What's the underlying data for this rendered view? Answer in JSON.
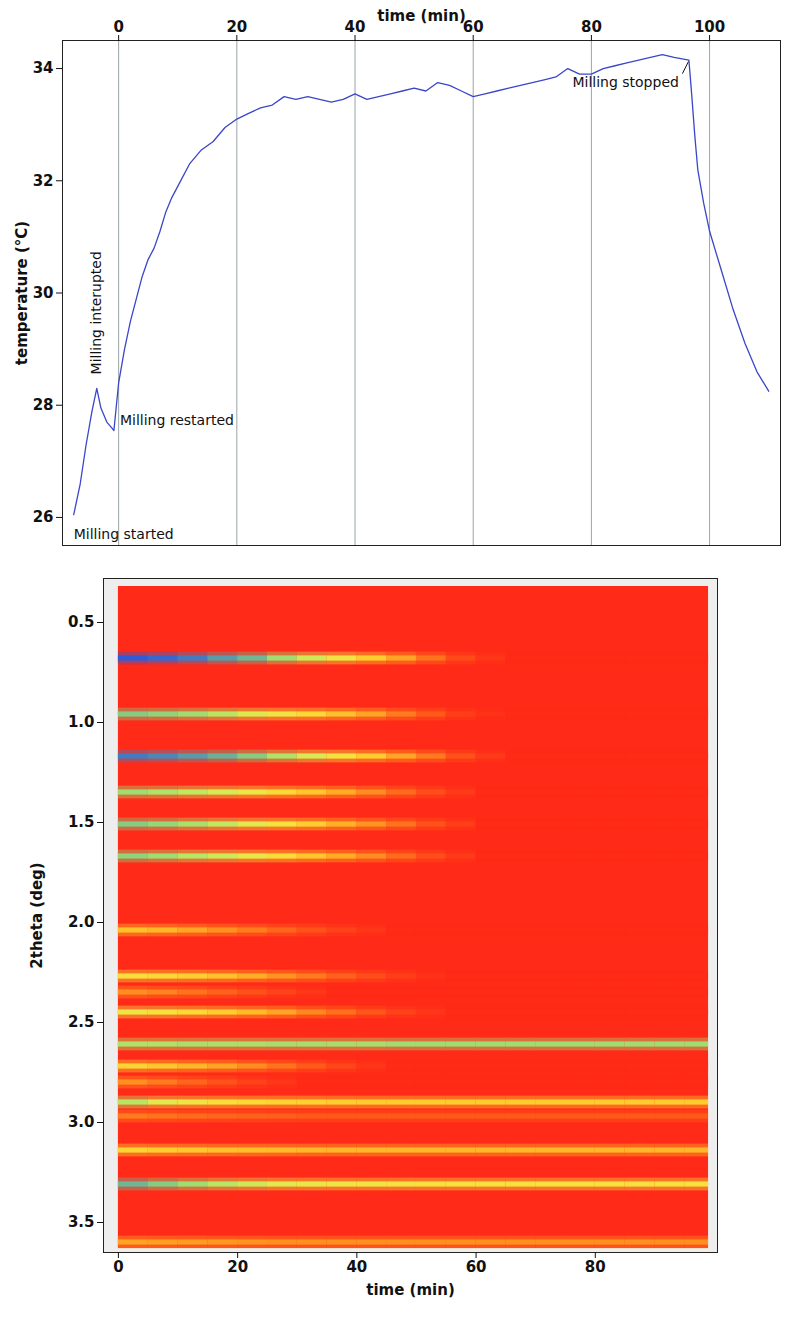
{
  "chart_data": [
    {
      "type": "line",
      "x_label": "time (min)",
      "y_label": "temperature (°C)",
      "xlim": [
        -9.5,
        112
      ],
      "ylim": [
        25.5,
        34.5
      ],
      "xticks": [
        0,
        20,
        40,
        60,
        80,
        100
      ],
      "yticks": [
        26,
        28,
        30,
        32,
        34
      ],
      "grid": true,
      "color": "#3b46c9",
      "x": [
        -7.6,
        -6.5,
        -5.5,
        -4.5,
        -3.7,
        -3,
        -2,
        -1.2,
        -0.8,
        0,
        1,
        2,
        3,
        4,
        5,
        6,
        7,
        8,
        9,
        10,
        12,
        14,
        16,
        18,
        20,
        22,
        24,
        26,
        28,
        30,
        32,
        34,
        36,
        38,
        40,
        42,
        44,
        46,
        48,
        50,
        52,
        54,
        56,
        58,
        60,
        62,
        64,
        66,
        68,
        70,
        72,
        74,
        76,
        78,
        80,
        82,
        84,
        86,
        88,
        90,
        92,
        94,
        96.5,
        97,
        97.5,
        98,
        99,
        100,
        102,
        104,
        106,
        108,
        110
      ],
      "values": [
        26.05,
        26.6,
        27.3,
        27.9,
        28.3,
        27.95,
        27.7,
        27.6,
        27.55,
        28.4,
        29.0,
        29.5,
        29.9,
        30.3,
        30.6,
        30.8,
        31.1,
        31.45,
        31.7,
        31.9,
        32.3,
        32.55,
        32.7,
        32.95,
        33.1,
        33.2,
        33.3,
        33.35,
        33.5,
        33.45,
        33.5,
        33.45,
        33.4,
        33.45,
        33.55,
        33.45,
        33.5,
        33.55,
        33.6,
        33.65,
        33.6,
        33.75,
        33.7,
        33.6,
        33.5,
        33.55,
        33.6,
        33.65,
        33.7,
        33.75,
        33.8,
        33.85,
        34.0,
        33.9,
        33.9,
        34.0,
        34.05,
        34.1,
        34.15,
        34.2,
        34.25,
        34.2,
        34.15,
        33.5,
        32.8,
        32.2,
        31.6,
        31.1,
        30.4,
        29.7,
        29.1,
        28.6,
        28.25
      ],
      "annotations": [
        {
          "text": "Milling started",
          "x": -7.6,
          "y": 26.05
        },
        {
          "text": "Milling interupted",
          "x": -3.7,
          "y": 28.3
        },
        {
          "text": "Milling restarted",
          "x": -0.8,
          "y": 27.55
        },
        {
          "text": "Milling stopped",
          "x": 96.5,
          "y": 34.15
        }
      ]
    },
    {
      "type": "heatmap",
      "x_label": "time (min)",
      "y_label": "2theta (deg)",
      "xlim": [
        -2.5,
        100.5
      ],
      "ylim": [
        0.28,
        3.65
      ],
      "xticks": [
        0,
        20,
        40,
        60,
        80
      ],
      "yticks": [
        0.5,
        {
          "value": 1,
          "label": "1.0"
        },
        1.5,
        {
          "value": 2,
          "label": "2.0"
        },
        2.5,
        {
          "value": 3,
          "label": "3.0"
        },
        3.5
      ],
      "value_range": [
        0,
        1
      ],
      "two_theta_range": [
        0.32,
        3.63
      ],
      "time_bins": [
        0,
        5,
        10,
        15,
        20,
        25,
        30,
        35,
        40,
        45,
        50,
        55,
        60,
        65,
        70,
        75,
        80,
        85,
        90,
        95,
        99
      ],
      "peaks": [
        {
          "two_theta": 0.68,
          "values": [
            1,
            0.98,
            0.95,
            0.9,
            0.85,
            0.75,
            0.65,
            0.55,
            0.42,
            0.3,
            0.18,
            0.08,
            0.03,
            0,
            0,
            0,
            0,
            0,
            0,
            0
          ]
        },
        {
          "two_theta": 0.96,
          "values": [
            0.8,
            0.78,
            0.75,
            0.7,
            0.62,
            0.55,
            0.47,
            0.38,
            0.3,
            0.2,
            0.12,
            0.05,
            0.02,
            0,
            0,
            0,
            0,
            0,
            0,
            0
          ]
        },
        {
          "two_theta": 1.17,
          "values": [
            0.95,
            0.93,
            0.9,
            0.86,
            0.8,
            0.72,
            0.63,
            0.53,
            0.42,
            0.3,
            0.2,
            0.1,
            0.04,
            0,
            0,
            0,
            0,
            0,
            0,
            0
          ]
        },
        {
          "two_theta": 1.35,
          "values": [
            0.75,
            0.72,
            0.68,
            0.63,
            0.56,
            0.48,
            0.4,
            0.32,
            0.24,
            0.16,
            0.09,
            0.04,
            0,
            0,
            0,
            0,
            0,
            0,
            0,
            0
          ]
        },
        {
          "two_theta": 1.51,
          "values": [
            0.8,
            0.77,
            0.73,
            0.68,
            0.6,
            0.52,
            0.43,
            0.34,
            0.26,
            0.18,
            0.1,
            0.05,
            0,
            0,
            0,
            0,
            0,
            0,
            0,
            0
          ]
        },
        {
          "two_theta": 1.67,
          "values": [
            0.78,
            0.75,
            0.7,
            0.65,
            0.57,
            0.49,
            0.4,
            0.32,
            0.24,
            0.16,
            0.09,
            0.04,
            0,
            0,
            0,
            0,
            0,
            0,
            0,
            0
          ]
        },
        {
          "two_theta": 2.04,
          "values": [
            0.38,
            0.35,
            0.3,
            0.25,
            0.2,
            0.15,
            0.1,
            0.06,
            0.03,
            0,
            0,
            0,
            0,
            0,
            0,
            0,
            0,
            0,
            0,
            0
          ]
        },
        {
          "two_theta": 2.27,
          "values": [
            0.5,
            0.47,
            0.43,
            0.38,
            0.32,
            0.26,
            0.2,
            0.14,
            0.09,
            0.05,
            0.02,
            0,
            0,
            0,
            0,
            0,
            0,
            0,
            0,
            0
          ]
        },
        {
          "two_theta": 2.35,
          "values": [
            0.25,
            0.22,
            0.18,
            0.14,
            0.1,
            0.06,
            0.03,
            0,
            0,
            0,
            0,
            0,
            0,
            0,
            0,
            0,
            0,
            0,
            0,
            0
          ]
        },
        {
          "two_theta": 2.45,
          "values": [
            0.55,
            0.52,
            0.47,
            0.42,
            0.36,
            0.3,
            0.23,
            0.17,
            0.11,
            0.06,
            0.03,
            0,
            0,
            0,
            0,
            0,
            0,
            0,
            0,
            0
          ]
        },
        {
          "two_theta": 2.61,
          "values": [
            0.72,
            0.72,
            0.73,
            0.73,
            0.73,
            0.74,
            0.74,
            0.74,
            0.74,
            0.75,
            0.75,
            0.75,
            0.75,
            0.75,
            0.75,
            0.75,
            0.75,
            0.75,
            0.75,
            0.75
          ]
        },
        {
          "two_theta": 2.72,
          "values": [
            0.45,
            0.4,
            0.35,
            0.3,
            0.24,
            0.18,
            0.12,
            0.07,
            0.03,
            0,
            0,
            0,
            0,
            0,
            0,
            0,
            0,
            0,
            0,
            0
          ]
        },
        {
          "two_theta": 2.8,
          "values": [
            0.25,
            0.2,
            0.15,
            0.1,
            0.06,
            0.03,
            0,
            0,
            0,
            0,
            0,
            0,
            0,
            0,
            0,
            0,
            0,
            0,
            0,
            0
          ]
        },
        {
          "two_theta": 2.9,
          "values": [
            0.7,
            0.6,
            0.55,
            0.5,
            0.47,
            0.45,
            0.44,
            0.43,
            0.42,
            0.42,
            0.42,
            0.42,
            0.42,
            0.42,
            0.42,
            0.42,
            0.42,
            0.42,
            0.42,
            0.42
          ]
        },
        {
          "two_theta": 2.97,
          "values": [
            0.2,
            0.18,
            0.16,
            0.15,
            0.14,
            0.13,
            0.12,
            0.12,
            0.12,
            0.12,
            0.12,
            0.12,
            0.12,
            0.12,
            0.12,
            0.12,
            0.12,
            0.12,
            0.12,
            0.12
          ]
        },
        {
          "two_theta": 3.14,
          "values": [
            0.45,
            0.42,
            0.4,
            0.38,
            0.37,
            0.36,
            0.35,
            0.35,
            0.35,
            0.35,
            0.35,
            0.35,
            0.35,
            0.35,
            0.35,
            0.35,
            0.35,
            0.35,
            0.35,
            0.35
          ]
        },
        {
          "two_theta": 3.31,
          "values": [
            0.85,
            0.8,
            0.75,
            0.7,
            0.65,
            0.6,
            0.57,
            0.55,
            0.54,
            0.53,
            0.52,
            0.52,
            0.52,
            0.52,
            0.52,
            0.52,
            0.52,
            0.52,
            0.52,
            0.52
          ]
        },
        {
          "two_theta": 3.6,
          "values": [
            0.3,
            0.29,
            0.28,
            0.27,
            0.26,
            0.25,
            0.25,
            0.25,
            0.25,
            0.25,
            0.25,
            0.25,
            0.25,
            0.25,
            0.25,
            0.25,
            0.25,
            0.25,
            0.25,
            0.25
          ]
        }
      ]
    }
  ]
}
